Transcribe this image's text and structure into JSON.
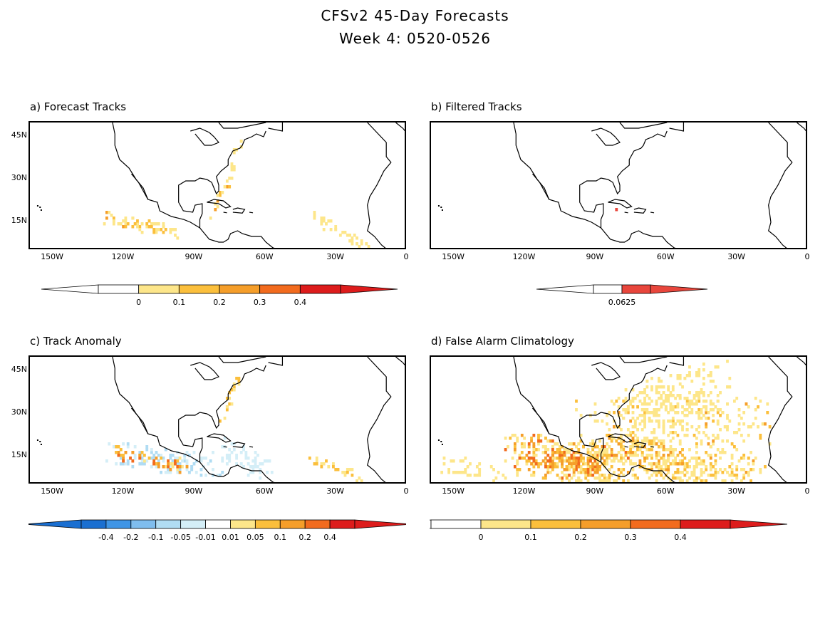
{
  "title": "CFSv2 45-Day Forecasts",
  "subtitle": "Week 4: 0520-0526",
  "lat_labels": [
    "45N",
    "30N",
    "15N"
  ],
  "lon_labels": [
    "150W",
    "120W",
    "90W",
    "60W",
    "30W",
    "0"
  ],
  "panels": [
    {
      "label": "a) Forecast Tracks",
      "colorbar": [
        "0",
        "0.1",
        "0.2",
        "0.3",
        "0.4"
      ]
    },
    {
      "label": "b) Filtered Tracks",
      "colorbar": [
        "0.0625"
      ]
    },
    {
      "label": "c) Track Anomaly",
      "colorbar": [
        "-0.4",
        "-0.2",
        "-0.1",
        "-0.05",
        "-0.01",
        "0.01",
        "0.05",
        "0.1",
        "0.2",
        "0.4"
      ]
    },
    {
      "label": "d) False Alarm Climatology",
      "colorbar": [
        "0",
        "0.1",
        "0.2",
        "0.3",
        "0.4"
      ]
    }
  ],
  "colors": {
    "seq": [
      "#ffffff",
      "#fde68a",
      "#fbbf3c",
      "#f59e2a",
      "#f26b1e",
      "#dd1c1c"
    ],
    "div_neg": [
      "#1a6fd1",
      "#3f95e6",
      "#7fbdee",
      "#b0dcf3",
      "#d4eef7"
    ],
    "div_pos": [
      "#fde68a",
      "#fbbf3c",
      "#f59e2a",
      "#f26b1e",
      "#dd1c1c"
    ],
    "filtered": "#e8463c"
  }
}
